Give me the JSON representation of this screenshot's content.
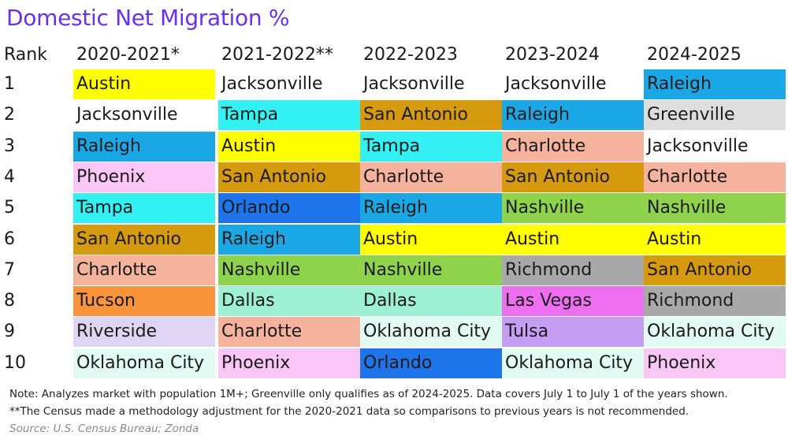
{
  "title": "Domestic Net Migration %",
  "chart_data": {
    "type": "table",
    "rank_header": "Rank",
    "columns": [
      "2020-2021*",
      "2021-2022**",
      "2022-2023",
      "2023-2024",
      "2024-2025"
    ],
    "ranks": [
      "1",
      "2",
      "3",
      "4",
      "5",
      "6",
      "7",
      "8",
      "9",
      "10"
    ],
    "rows": [
      [
        "Austin",
        "Jacksonville",
        "Jacksonville",
        "Jacksonville",
        "Raleigh"
      ],
      [
        "Jacksonville",
        "Tampa",
        "San Antonio",
        "Raleigh",
        "Greenville"
      ],
      [
        "Raleigh",
        "Austin",
        "Tampa",
        "Charlotte",
        "Jacksonville"
      ],
      [
        "Phoenix",
        "San Antonio",
        "Charlotte",
        "San Antonio",
        "Charlotte"
      ],
      [
        "Tampa",
        "Orlando",
        "Raleigh",
        "Nashville",
        "Nashville"
      ],
      [
        "San Antonio",
        "Raleigh",
        "Austin",
        "Austin",
        "Austin"
      ],
      [
        "Charlotte",
        "Nashville",
        "Nashville",
        "Richmond",
        "San Antonio"
      ],
      [
        "Tucson",
        "Dallas",
        "Dallas",
        "Las Vegas",
        "Richmond"
      ],
      [
        "Riverside",
        "Charlotte",
        "Oklahoma City",
        "Tulsa",
        "Oklahoma City"
      ],
      [
        "Oklahoma City",
        "Phoenix",
        "Orlando",
        "Oklahoma City",
        "Phoenix"
      ]
    ],
    "city_colors": {
      "Austin": "#ffff00",
      "Jacksonville": "#ffffff",
      "Raleigh": "#1aa7e6",
      "Phoenix": "#f9c6f5",
      "Tampa": "#33f0f2",
      "San Antonio": "#d69a0e",
      "Charlotte": "#f5b39d",
      "Tucson": "#f8943a",
      "Riverside": "#e0d4f5",
      "Oklahoma City": "#e2fbf3",
      "Orlando": "#1e74ea",
      "Nashville": "#8fd24c",
      "Dallas": "#9ef0d4",
      "Richmond": "#a8a8a8",
      "Las Vegas": "#ee6ef0",
      "Tulsa": "#c59df3",
      "Greenville": "#dedede"
    }
  },
  "notes": {
    "line1": "Note: Analyzes market with population 1M+; Greenville only qualifies as of 2024-2025. Data covers July 1 to July 1 of the years shown.",
    "line2": "**The Census made a methodology adjustment for the 2020-2021 data so comparisons to previous years is not recommended.",
    "source": "Source: U.S. Census Bureau; Zonda"
  }
}
